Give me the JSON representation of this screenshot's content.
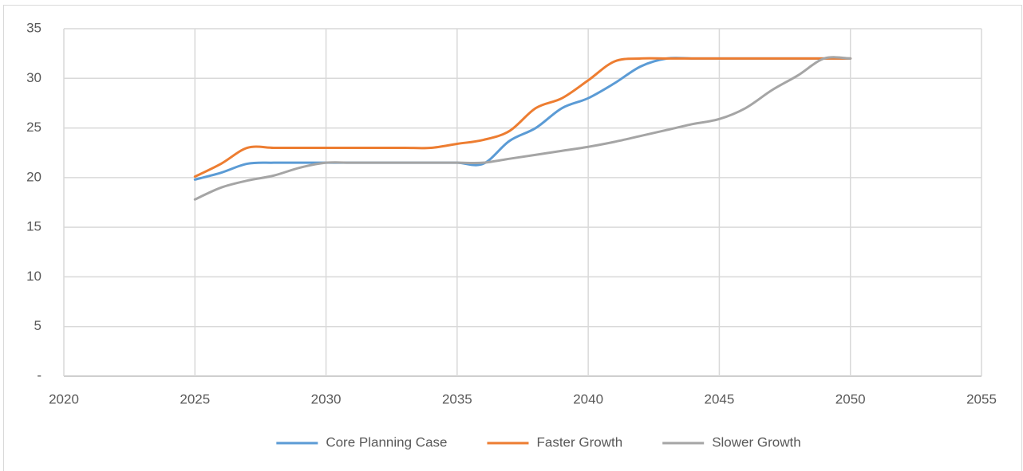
{
  "chart_data": {
    "type": "line",
    "x": [
      2025,
      2026,
      2027,
      2028,
      2029,
      2030,
      2031,
      2032,
      2033,
      2034,
      2035,
      2036,
      2037,
      2038,
      2039,
      2040,
      2041,
      2042,
      2043,
      2044,
      2045,
      2046,
      2047,
      2048,
      2049,
      2050
    ],
    "series": [
      {
        "name": "Core Planning Case",
        "color": "#5b9bd5",
        "values": [
          19.8,
          20.5,
          21.4,
          21.5,
          21.5,
          21.5,
          21.5,
          21.5,
          21.5,
          21.5,
          21.5,
          21.4,
          23.7,
          25,
          27,
          28,
          29.5,
          31.2,
          32,
          32,
          32,
          32,
          32,
          32,
          32,
          32
        ]
      },
      {
        "name": "Faster Growth",
        "color": "#ed7d31",
        "values": [
          20.1,
          21.4,
          23,
          23,
          23,
          23,
          23,
          23,
          23,
          23,
          23.4,
          23.8,
          24.7,
          27,
          28,
          29.8,
          31.7,
          32,
          32,
          32,
          32,
          32,
          32,
          32,
          32,
          32
        ]
      },
      {
        "name": "Slower Growth",
        "color": "#a5a5a5",
        "values": [
          17.8,
          19,
          19.7,
          20.2,
          21,
          21.5,
          21.5,
          21.5,
          21.5,
          21.5,
          21.5,
          21.5,
          21.9,
          22.3,
          22.7,
          23.1,
          23.6,
          24.2,
          24.8,
          25.4,
          25.9,
          27,
          28.8,
          30.3,
          32,
          32
        ]
      }
    ],
    "xlim": [
      2020,
      2055
    ],
    "xticks": [
      2020,
      2025,
      2030,
      2035,
      2040,
      2045,
      2050,
      2055
    ],
    "ylim": [
      0,
      35
    ],
    "yticks": [
      {
        "value": 0,
        "label": "-"
      },
      5,
      10,
      15,
      20,
      25,
      30,
      35
    ],
    "grid": true,
    "legend": "bottom"
  }
}
